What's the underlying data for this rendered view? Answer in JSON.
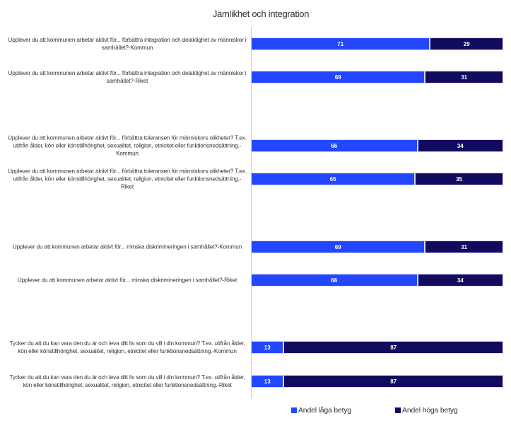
{
  "chart_data": {
    "type": "bar",
    "orientation": "horizontal",
    "stacked": true,
    "title": "Jämlikhet och integration",
    "xlim": [
      0,
      100
    ],
    "legend_position": "bottom",
    "categories": [
      "Upplever du att kommunen arbetar aktivt för... förbättra integration och delaktighet av människor i samhället?-Kommun",
      "Upplever du att kommunen arbetar aktivt för... förbättra integration och delaktighet av människor i samhället?-Riket",
      "Upplever du att kommunen arbetar aktivt för... förbättra toleransen för människors olikheter? T.ex. utifrån ålder, kön eller könstillhörighet, sexualitet, religion, etnicitet eller funktionsnedsättning.-Kommun",
      "Upplever du att kommunen arbetar aktivt för... förbättra toleransen för människors olikheter? T.ex. utifrån ålder, kön eller könstillhörighet, sexualitet, religion, etnicitet eller funktionsnedsättning.-Riket",
      "Upplever du att kommunen arbetar aktivt för... minska diskrimineringen i samhället?-Kommun",
      "Upplever du att kommunen arbetar aktivt för... minska diskrimineringen i samhället?-Riket",
      "Tycker du att du kan vara den du är och leva ditt liv som du vill i din kommun? T.ex. utifrån ålder, kön eller könstillhörighet, sexualitet, religion, etnicitet eller funktionsnedsättning.-Kommun",
      "Tycker du att du kan vara den du är och leva ditt liv som du vill i din kommun? T.ex. utifrån ålder, kön eller könstillhörighet, sexualitet, religion, etnicitet eller funktionsnedsättning.-Riket"
    ],
    "series": [
      {
        "name": "Andel låga betyg",
        "color": "#2346ff",
        "values": [
          71,
          69,
          66,
          65,
          69,
          66,
          13,
          13
        ]
      },
      {
        "name": "Andel höga betyg",
        "color": "#120a5e",
        "values": [
          29,
          31,
          34,
          35,
          31,
          34,
          87,
          87
        ]
      }
    ]
  }
}
